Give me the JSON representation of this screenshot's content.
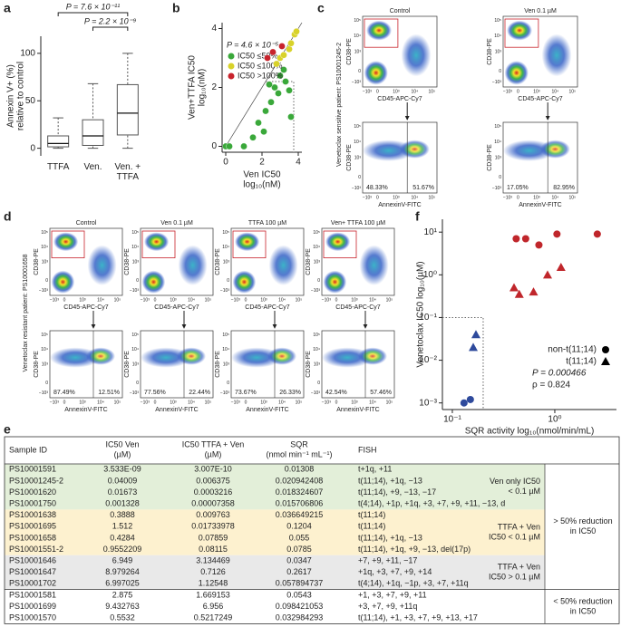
{
  "panel_labels": [
    "a",
    "b",
    "c",
    "d",
    "e",
    "f"
  ],
  "chart_data": [
    {
      "type": "box",
      "categories": [
        "TTFA",
        "Ven.",
        "Ven. +\nTTFA"
      ],
      "boxes": [
        {
          "min": 0,
          "q1": 1.5,
          "median": 5,
          "q3": 13,
          "max": 32
        },
        {
          "min": 0,
          "q1": 3,
          "median": 13,
          "q3": 30,
          "max": 68
        },
        {
          "min": 0,
          "q1": 14,
          "median": 37,
          "q3": 67,
          "max": 100
        }
      ],
      "ylabel": [
        "Annexin V+ (%)",
        "relative to control"
      ],
      "annotations": [
        "P = 7.6 × 10⁻¹¹",
        "P = 2.2 × 10⁻⁹"
      ],
      "ylim": [
        -8,
        118
      ],
      "yticks": [
        0,
        50,
        100
      ],
      "color": "#555555"
    },
    {
      "type": "scatter",
      "xlabel": [
        "Ven IC50",
        "log₁₀(nM)"
      ],
      "ylabel": [
        "Ven+TTFA IC50",
        "log₁₀(nM)"
      ],
      "annotation": "P = 4.6 × 10⁻⁵",
      "legend": "upper left",
      "xlim": [
        -0.2,
        4.2
      ],
      "ylim": [
        -0.2,
        4.2
      ],
      "xticks": [
        0,
        2,
        4
      ],
      "yticks": [
        0,
        2,
        4
      ],
      "series": [
        {
          "name": "IC50 ≤50%",
          "color": "#3aa83a",
          "x": [
            0,
            0.2,
            1,
            1.5,
            1.8,
            2.2,
            2.5,
            2.7,
            2.9,
            3.0,
            3.2,
            3.3,
            3.5,
            2.4,
            3.6,
            2.1
          ],
          "values": [
            0,
            0,
            0,
            0.3,
            0.8,
            1.2,
            1.5,
            2.0,
            1.8,
            2.4,
            2.6,
            2.2,
            1.9,
            2.1,
            1.0,
            0.5
          ]
        },
        {
          "name": "IC50 ≤100%",
          "color": "#d8d22a",
          "x": [
            3.0,
            3.2,
            3.5,
            3.6,
            3.8,
            3.9,
            2.8
          ],
          "values": [
            3.0,
            3.1,
            3.3,
            3.5,
            3.8,
            3.9,
            2.8
          ]
        },
        {
          "name": "IC50 >100%",
          "color": "#c8232c",
          "x": [
            2.3,
            2.6,
            3.1
          ],
          "values": [
            3.0,
            3.2,
            3.4
          ]
        }
      ]
    },
    {
      "type": "scatter",
      "log": true,
      "xlabel": "SQR activity log₁₀(nmol/min/mL)",
      "ylabel": "Venetoclax IC50 log₁₀(µM)",
      "annotations": [
        "P = 0.000466",
        "ρ = 0.824"
      ],
      "legend": "lower right",
      "xlim": [
        0.08,
        4
      ],
      "ylim": [
        0.0007,
        20
      ],
      "xticks": [
        {
          "value": 0.1,
          "label": "10⁻¹"
        },
        {
          "value": 1,
          "label": "10⁰"
        }
      ],
      "yticks": [
        {
          "value": 0.001,
          "label": "10⁻³"
        },
        {
          "value": 0.01,
          "label": "10⁻²"
        },
        {
          "value": 0.1,
          "label": "10⁻¹"
        },
        {
          "value": 1,
          "label": "10⁰"
        },
        {
          "value": 10,
          "label": "10¹"
        }
      ],
      "series": [
        {
          "name": "non-t(11;14)",
          "marker": "circle",
          "x": [
            0.13,
            0.15,
            0.42,
            0.52,
            0.7,
            1.05,
            2.6
          ],
          "values": [
            0.001,
            0.0012,
            7,
            7,
            5,
            9,
            9
          ],
          "colors": [
            "#2e4a9c",
            "#2e4a9c",
            "#c0262b",
            "#c0262b",
            "#c0262b",
            "#c0262b",
            "#c0262b"
          ]
        },
        {
          "name": "t(11;14)",
          "marker": "triangle",
          "x": [
            0.16,
            0.17,
            0.4,
            0.45,
            0.62,
            0.85,
            1.15
          ],
          "values": [
            0.02,
            0.04,
            0.5,
            0.35,
            0.4,
            1.0,
            1.5
          ],
          "colors": [
            "#2e4a9c",
            "#2e4a9c",
            "#c0262b",
            "#c0262b",
            "#c0262b",
            "#c0262b",
            "#c0262b"
          ]
        }
      ]
    }
  ],
  "flow_axes": {
    "top_x": "CD45-APC-Cy7",
    "top_y": "CD38-PE",
    "bottom_x": "AnnexinV-FITC",
    "bottom_y": "CD38-PE",
    "y_ticks": [
      "10⁵",
      "10⁴",
      "10³",
      "0",
      "−10³"
    ],
    "x_ticks": [
      "−10³",
      "0",
      "10³",
      "10⁴",
      "10⁵"
    ]
  },
  "flow_panels": [
    {
      "side_label": "Venetoclax sensitive patient: PS10001245-2",
      "plots": [
        {
          "title": "Control",
          "quadrants": [
            "48.33%",
            "51.67%"
          ]
        },
        {
          "title": "Ven 0.1 µM",
          "quadrants": [
            "17.05%",
            "82.95%"
          ]
        }
      ]
    },
    {
      "side_label": "Venetoclax resistant patient: PS10001658",
      "plots": [
        {
          "title": "Control",
          "quadrants": [
            "87.49%",
            "12.51%"
          ]
        },
        {
          "title": "Ven 0.1 µM",
          "quadrants": [
            "77.56%",
            "22.44%"
          ]
        },
        {
          "title": "TTFA 100 µM",
          "quadrants": [
            "73.67%",
            "26.33%"
          ]
        },
        {
          "title": "Ven+ TTFA 100 µM",
          "quadrants": [
            "42.54%",
            "57.46%"
          ]
        }
      ]
    }
  ],
  "table": {
    "header": [
      [
        "Sample ID"
      ],
      [
        "IC50 Ven",
        "(µM)"
      ],
      [
        "IC50 TTFA + Ven",
        "(µM)"
      ],
      [
        "SQR",
        "(nmol min⁻¹ mL⁻¹)"
      ],
      [
        "FISH"
      ]
    ],
    "blocks": [
      {
        "label": [
          "> 50% reduction",
          "in IC50"
        ],
        "sections": [
          {
            "label": [
              "Ven only IC50",
              "< 0.1 µM"
            ],
            "color": "#e3efd9",
            "rows": [
              [
                "PS10001591",
                "3.533E-09",
                "3.007E-10",
                "0.01308",
                "t+1q, +11"
              ],
              [
                "PS10001245-2",
                "0.04009",
                "0.006375",
                "0.020942408",
                "t(11;14), +1q, −13"
              ],
              [
                "PS10001620",
                "0.01673",
                "0.0003216",
                "0.018324607",
                "t(11;14), +9, −13, −17"
              ],
              [
                "PS10001750",
                "0.001328",
                "0.00007358",
                "0.015706806",
                "t(4;14), +1p, +1q, +3, +7, +9, +11, −13, d"
              ]
            ]
          },
          {
            "label": [
              "TTFA + Ven",
              "IC50 < 0.1 µM"
            ],
            "color": "#fdf1cf",
            "rows": [
              [
                "PS10001638",
                "0.3888",
                "0.009763",
                "0.036649215",
                "t(11;14)"
              ],
              [
                "PS10001695",
                "1.512",
                "0.01733978",
                "0.1204",
                "t(11;14)"
              ],
              [
                "PS10001658",
                "0.4284",
                "0.07859",
                "0.055",
                "t(11;14), +1q, −13"
              ],
              [
                "PS10001551-2",
                "0.9552209",
                "0.08115",
                "0.0785",
                "t(11;14), +1q, +9, −13, del(17p)"
              ]
            ]
          },
          {
            "label": [
              "TTFA + Ven",
              "IC50 > 0.1 µM"
            ],
            "color": "#e9e9e9",
            "rows": [
              [
                "PS10001646",
                "6.949",
                "3.134469",
                "0.0347",
                "+7, +9, +11, −17"
              ],
              [
                "PS10001647",
                "8.979264",
                "0.7126",
                "0.2617",
                "+1q, +3, +7, +9, +14"
              ],
              [
                "PS10001702",
                "6.997025",
                "1.12548",
                "0.057894737",
                "t(4;14), +1q, −1p, +3, +7, +11q"
              ]
            ]
          }
        ]
      },
      {
        "label": [
          "< 50% reduction",
          "in IC50"
        ],
        "sections": [
          {
            "color": "#ffffff",
            "rows": [
              [
                "PS10001581",
                "2.875",
                "1.669153",
                "0.0543",
                "+1, +3, +7, +9, +11"
              ],
              [
                "PS10001699",
                "9.432763",
                "6.956",
                "0.098421053",
                "+3, +7, +9, +11q"
              ],
              [
                "PS10001570",
                "0.5532",
                "0.5217249",
                "0.032984293",
                "t(11;14), +1, +3, +7, +9, +13, +17"
              ]
            ]
          }
        ]
      }
    ]
  }
}
